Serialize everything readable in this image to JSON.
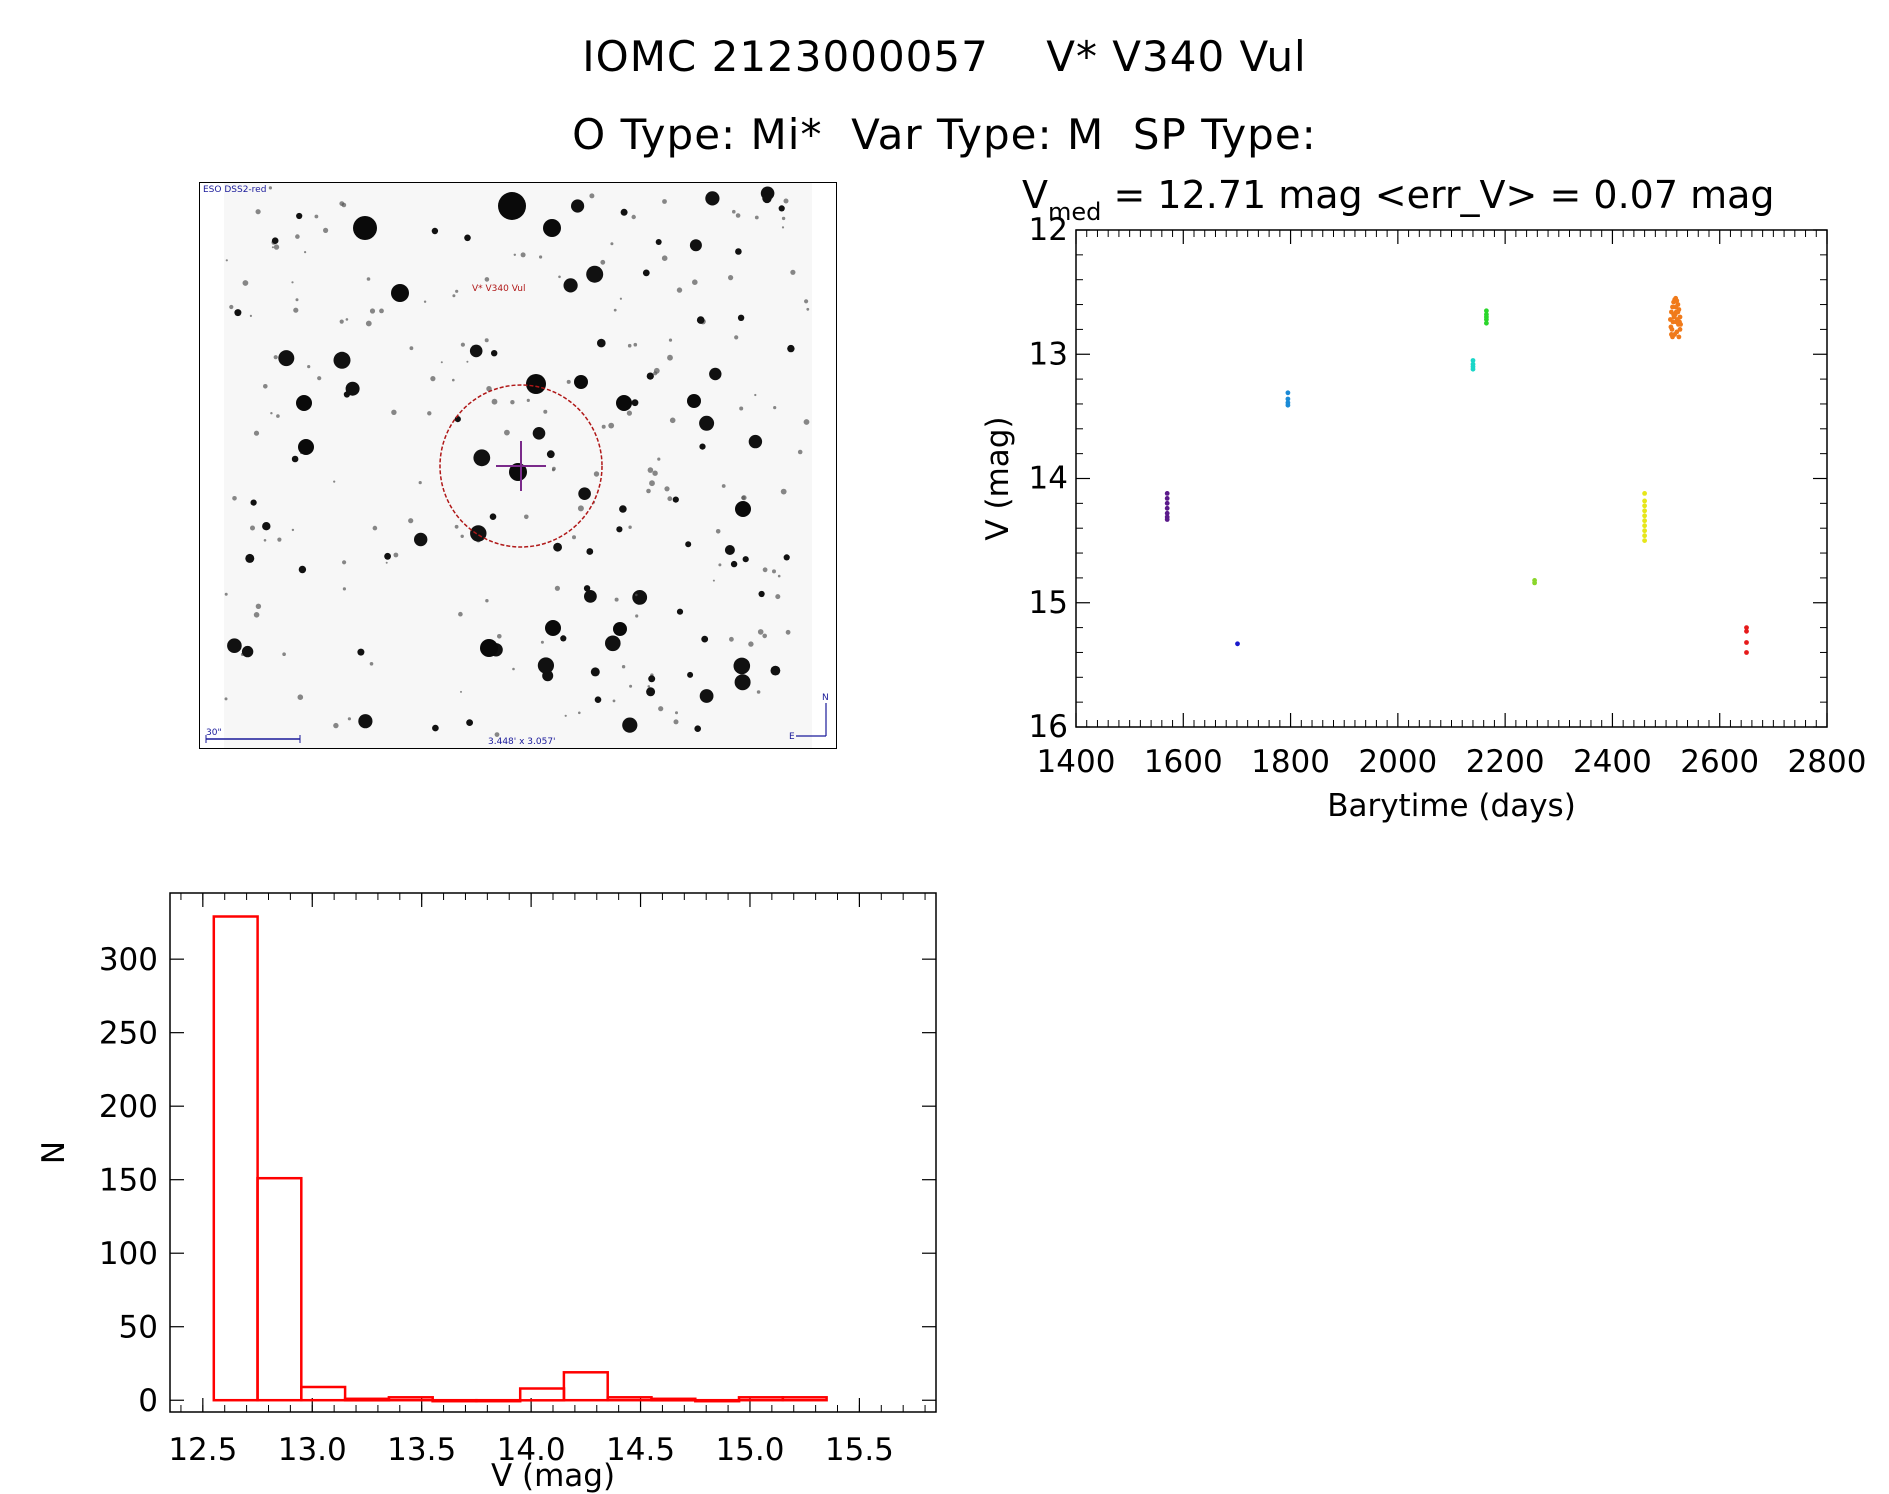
{
  "header": {
    "title_line1": "IOMC 2123000057    V* V340 Vul",
    "title_line2": "O Type: Mi*  Var Type: M  SP Type:"
  },
  "finder": {
    "survey_label": "ESO DSS2-red",
    "target_label": "V* V340 Vul",
    "scale_label": "30\"",
    "fov_label": "3.448' x 3.057'",
    "north_label": "N",
    "east_label": "E"
  },
  "chart_data": [
    {
      "type": "scatter",
      "title_prefix": "V",
      "title_subscript": "med",
      "title_suffix": " = 12.71 mag <err_V> = 0.07 mag",
      "xlabel": "Barytime (days)",
      "ylabel": "V (mag)",
      "xlim": [
        1400,
        2800
      ],
      "ylim": [
        16,
        12
      ],
      "y_inverted": true,
      "xticks": [
        1400,
        1600,
        1800,
        2000,
        2200,
        2400,
        2600,
        2800
      ],
      "yticks": [
        12,
        13,
        14,
        15,
        16
      ],
      "series": [
        {
          "color": "#5a1a8a",
          "x": [
            1570,
            1570,
            1570,
            1570,
            1570,
            1570,
            1570
          ],
          "y": [
            14.12,
            14.16,
            14.2,
            14.24,
            14.28,
            14.31,
            14.33
          ]
        },
        {
          "color": "#1a1acc",
          "x": [
            1701
          ],
          "y": [
            15.33
          ]
        },
        {
          "color": "#1a8ad6",
          "x": [
            1795,
            1795,
            1795,
            1795
          ],
          "y": [
            13.31,
            13.36,
            13.39,
            13.41
          ]
        },
        {
          "color": "#1ad6c8",
          "x": [
            2140,
            2140,
            2140,
            2140
          ],
          "y": [
            13.05,
            13.08,
            13.1,
            13.12
          ]
        },
        {
          "color": "#2bd62b",
          "x": [
            2165,
            2165,
            2165,
            2165,
            2165
          ],
          "y": [
            12.65,
            12.68,
            12.7,
            12.72,
            12.75
          ]
        },
        {
          "color": "#8ad62b",
          "x": [
            2255,
            2255
          ],
          "y": [
            14.82,
            14.84
          ]
        },
        {
          "color": "#e6e61a",
          "x": [
            2460,
            2460,
            2460,
            2460,
            2460,
            2460,
            2460,
            2460,
            2460,
            2460
          ],
          "y": [
            14.12,
            14.18,
            14.22,
            14.26,
            14.3,
            14.34,
            14.38,
            14.42,
            14.46,
            14.5
          ]
        },
        {
          "color": "#f07a1a",
          "x": [
            2508,
            2510,
            2512,
            2514,
            2516,
            2518,
            2520,
            2522,
            2524,
            2526,
            2509,
            2511,
            2513,
            2515,
            2517,
            2519,
            2521,
            2523,
            2525,
            2527,
            2512,
            2516,
            2520,
            2524,
            2514,
            2518,
            2522,
            2510,
            2526,
            2519
          ],
          "y": [
            12.72,
            12.66,
            12.62,
            12.58,
            12.56,
            12.55,
            12.57,
            12.6,
            12.64,
            12.7,
            12.78,
            12.8,
            12.74,
            12.7,
            12.68,
            12.66,
            12.72,
            12.76,
            12.74,
            12.76,
            12.86,
            12.84,
            12.82,
            12.86,
            12.68,
            12.62,
            12.66,
            12.84,
            12.8,
            12.74
          ]
        },
        {
          "color": "#e61a1a",
          "x": [
            2650,
            2650,
            2650,
            2650
          ],
          "y": [
            15.2,
            15.23,
            15.32,
            15.4
          ]
        }
      ]
    },
    {
      "type": "bar",
      "subtype": "histogram",
      "xlabel": "V (mag)",
      "ylabel": "N",
      "xlim": [
        12.35,
        15.85
      ],
      "ylim": [
        -8,
        345
      ],
      "xticks": [
        12.5,
        13.0,
        13.5,
        14.0,
        14.5,
        15.0,
        15.5
      ],
      "xtick_labels": [
        "12.5",
        "13.0",
        "13.5",
        "14.0",
        "14.5",
        "15.0",
        "15.5"
      ],
      "yticks": [
        0,
        50,
        100,
        150,
        200,
        250,
        300
      ],
      "bin_edges": [
        12.55,
        12.75,
        12.95,
        13.15,
        13.35,
        13.55,
        13.75,
        13.95,
        14.15,
        14.35,
        14.55,
        14.75,
        14.95,
        15.15,
        15.35
      ],
      "counts": [
        329,
        151,
        9,
        1,
        2,
        0,
        0,
        8,
        19,
        2,
        1,
        0,
        2,
        2
      ],
      "color": "#ff0000"
    }
  ]
}
